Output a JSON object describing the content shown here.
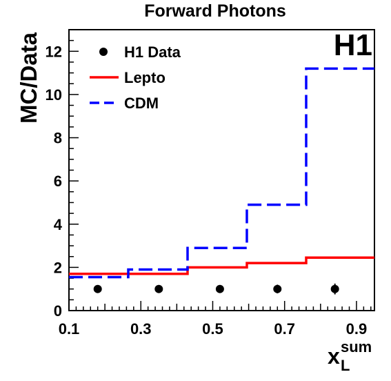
{
  "chart_data": {
    "type": "histogram",
    "title": "Forward Photons",
    "xlabel": "x",
    "xlabel_sub": "L",
    "xlabel_sup": "sum",
    "ylabel": "MC/Data",
    "experiment_label": "H1",
    "xlim": [
      0.1,
      0.95
    ],
    "ylim": [
      0,
      13
    ],
    "xticks": [
      "0.1",
      "0.3",
      "0.5",
      "0.7",
      "0.9"
    ],
    "yticks": [
      "0",
      "2",
      "4",
      "6",
      "8",
      "10",
      "12"
    ],
    "bin_edges": [
      0.1,
      0.265,
      0.43,
      0.595,
      0.76,
      0.95
    ],
    "data_points": {
      "name": "H1 Data",
      "x": [
        0.18,
        0.35,
        0.52,
        0.68,
        0.84
      ],
      "y": [
        1.0,
        1.0,
        1.0,
        1.0,
        1.0
      ],
      "yerr": [
        0.0,
        0.0,
        0.0,
        0.2,
        0.25
      ]
    },
    "series": [
      {
        "name": "Lepto",
        "values": [
          1.7,
          1.7,
          2.0,
          2.2,
          2.45
        ],
        "color": "#ff0000",
        "style": "solid"
      },
      {
        "name": "CDM",
        "values": [
          1.55,
          1.9,
          2.9,
          4.9,
          11.2
        ],
        "color": "#0000ff",
        "style": "dashed"
      }
    ],
    "legend_position": "top-left",
    "grid": false
  }
}
